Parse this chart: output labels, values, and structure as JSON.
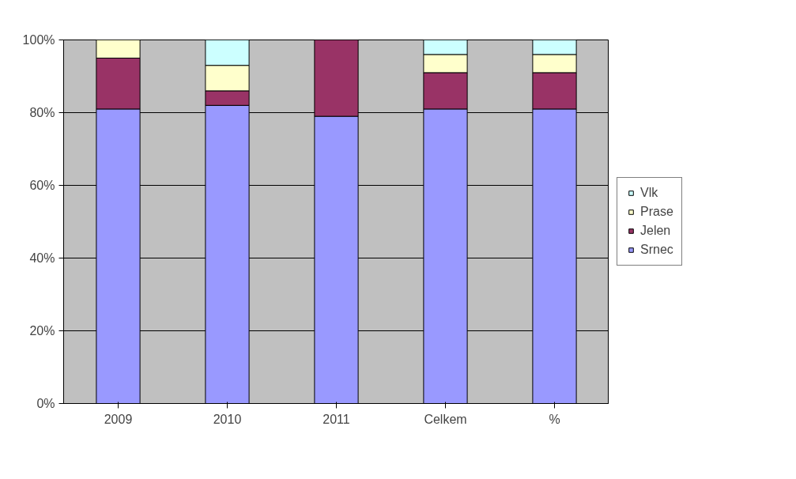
{
  "chart_data": {
    "type": "bar",
    "stacked": true,
    "categories": [
      "2009",
      "2010",
      "2011",
      "Celkem",
      "%"
    ],
    "series": [
      {
        "name": "Srnec",
        "color": "#9999ff",
        "values": [
          81,
          82,
          79,
          81,
          81
        ]
      },
      {
        "name": "Jelen",
        "color": "#993366",
        "values": [
          14,
          4,
          21,
          10,
          10
        ]
      },
      {
        "name": "Prase",
        "color": "#ffffcc",
        "values": [
          5,
          7,
          0,
          5,
          5
        ]
      },
      {
        "name": "Vlk",
        "color": "#ccffff",
        "values": [
          0,
          7,
          0,
          4,
          4
        ]
      }
    ],
    "ylim": [
      0,
      100
    ],
    "yticks": [
      {
        "value": 0,
        "label": "0%"
      },
      {
        "value": 20,
        "label": "20%"
      },
      {
        "value": 40,
        "label": "40%"
      },
      {
        "value": 60,
        "label": "60%"
      },
      {
        "value": 80,
        "label": "80%"
      },
      {
        "value": 100,
        "label": "100%"
      }
    ],
    "grid": "y",
    "legend": "right"
  }
}
